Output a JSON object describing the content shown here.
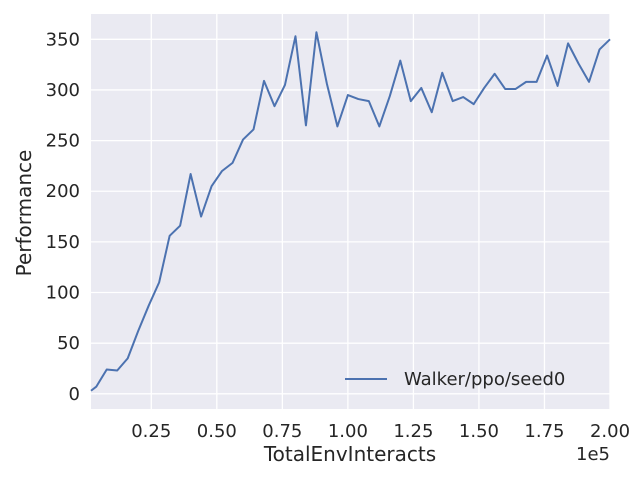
{
  "chart_data": {
    "type": "line",
    "title": "",
    "xlabel": "TotalEnvInteracts",
    "ylabel": "Performance",
    "x_offset_label": "1e5",
    "xlim": [
      0.02,
      2.0
    ],
    "ylim": [
      -15,
      375
    ],
    "x_ticks": [
      0.25,
      0.5,
      0.75,
      1.0,
      1.25,
      1.5,
      1.75,
      2.0
    ],
    "x_tick_labels": [
      "0.25",
      "0.50",
      "0.75",
      "1.00",
      "1.25",
      "1.50",
      "1.75",
      "2.00"
    ],
    "y_ticks": [
      0,
      50,
      100,
      150,
      200,
      250,
      300,
      350
    ],
    "y_tick_labels": [
      "0",
      "50",
      "100",
      "150",
      "200",
      "250",
      "300",
      "350"
    ],
    "grid": true,
    "legend": {
      "position": "lower-right",
      "entries": [
        "Walker/ppo/seed0"
      ]
    },
    "series": [
      {
        "name": "Walker/ppo/seed0",
        "color": "#4c72b0",
        "x": [
          0.02,
          0.04,
          0.08,
          0.12,
          0.16,
          0.2,
          0.24,
          0.28,
          0.32,
          0.36,
          0.4,
          0.44,
          0.48,
          0.52,
          0.56,
          0.6,
          0.64,
          0.68,
          0.72,
          0.76,
          0.8,
          0.84,
          0.88,
          0.92,
          0.96,
          1.0,
          1.04,
          1.08,
          1.12,
          1.16,
          1.2,
          1.24,
          1.28,
          1.32,
          1.36,
          1.4,
          1.44,
          1.48,
          1.52,
          1.56,
          1.6,
          1.64,
          1.68,
          1.72,
          1.76,
          1.8,
          1.84,
          1.88,
          1.92,
          1.96,
          2.0
        ],
        "values": [
          3,
          7,
          24,
          23,
          35,
          62,
          87,
          110,
          156,
          166,
          217,
          175,
          205,
          220,
          228,
          251,
          261,
          309,
          284,
          305,
          353,
          265,
          357,
          306,
          264,
          295,
          291,
          289,
          264,
          294,
          329,
          289,
          302,
          278,
          317,
          289,
          293,
          286,
          302,
          316,
          301,
          301,
          308,
          308,
          334,
          304,
          346,
          326,
          308,
          340,
          350
        ]
      }
    ]
  }
}
